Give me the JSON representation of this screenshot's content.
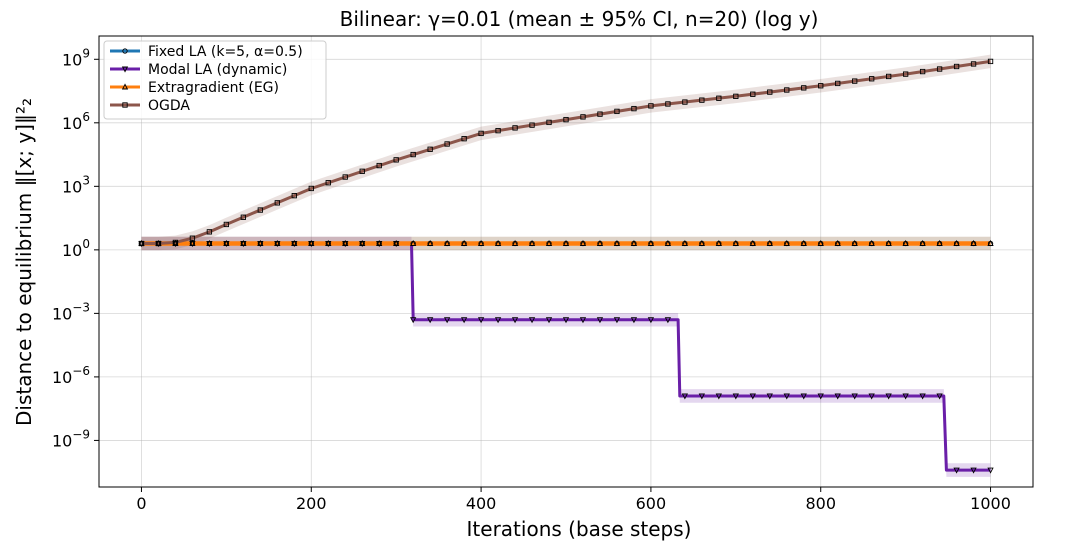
{
  "chart_data": {
    "type": "line",
    "title": "Bilinear: γ=0.01  (mean ± 95% CI, n=20) (log y)",
    "xlabel": "Iterations (base steps)",
    "ylabel": "Distance to equilibrium ‖[x; y]‖²₂",
    "yscale": "log",
    "xlim": [
      -50,
      1050
    ],
    "ylim_log10": [
      -11.2,
      10.1
    ],
    "grid": true,
    "legend_position": "top-left",
    "x_ticks": [
      {
        "value": 0,
        "label": "0"
      },
      {
        "value": 200,
        "label": "200"
      },
      {
        "value": 400,
        "label": "400"
      },
      {
        "value": 600,
        "label": "600"
      },
      {
        "value": 800,
        "label": "800"
      },
      {
        "value": 1000,
        "label": "1000"
      }
    ],
    "y_ticks": [
      {
        "exp": 9,
        "base": "10",
        "sup": "9"
      },
      {
        "exp": 6,
        "base": "10",
        "sup": "6"
      },
      {
        "exp": 3,
        "base": "10",
        "sup": "3"
      },
      {
        "exp": 0,
        "base": "10",
        "sup": "0"
      },
      {
        "exp": -3,
        "base": "10",
        "sup": "−3"
      },
      {
        "exp": -6,
        "base": "10",
        "sup": "−6"
      },
      {
        "exp": -9,
        "base": "10",
        "sup": "−9"
      }
    ],
    "series": [
      {
        "name": "Fixed LA (k=5, α=0.5)",
        "color": "#1f77b4",
        "marker": "circle",
        "log10_points": [
          [
            0,
            0.3
          ],
          [
            1000,
            0.3
          ]
        ]
      },
      {
        "name": "Modal LA (dynamic)",
        "color": "#6a1fa8",
        "marker": "triangle-down",
        "log10_points": [
          [
            0,
            0.3
          ],
          [
            318,
            0.3
          ],
          [
            320,
            -3.3
          ],
          [
            632,
            -3.3
          ],
          [
            634,
            -6.9
          ],
          [
            945,
            -6.9
          ],
          [
            948,
            -10.4
          ],
          [
            1000,
            -10.4
          ]
        ]
      },
      {
        "name": "Extragradient (EG)",
        "color": "#ff7f0e",
        "marker": "triangle-up",
        "log10_points": [
          [
            0,
            0.3
          ],
          [
            1000,
            0.3
          ]
        ]
      },
      {
        "name": "OGDA",
        "color": "#8c564b",
        "marker": "square",
        "log10_points": [
          [
            0,
            0.3
          ],
          [
            20,
            0.3
          ],
          [
            40,
            0.35
          ],
          [
            60,
            0.55
          ],
          [
            80,
            0.85
          ],
          [
            100,
            1.2
          ],
          [
            150,
            2.05
          ],
          [
            200,
            2.9
          ],
          [
            300,
            4.25
          ],
          [
            400,
            5.5
          ],
          [
            500,
            6.15
          ],
          [
            600,
            6.8
          ],
          [
            700,
            7.25
          ],
          [
            800,
            7.75
          ],
          [
            900,
            8.3
          ],
          [
            1000,
            8.9
          ]
        ]
      }
    ]
  }
}
